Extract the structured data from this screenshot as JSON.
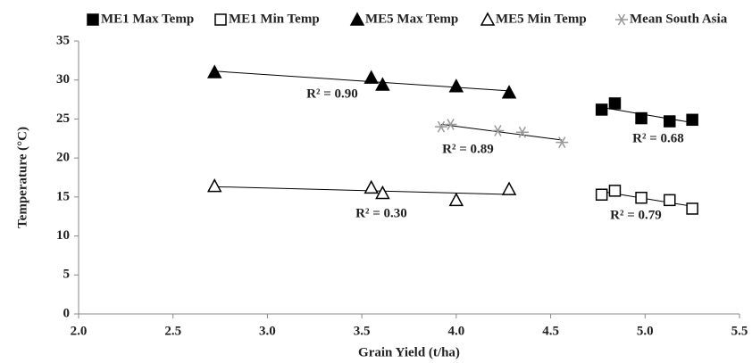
{
  "chart_data": {
    "type": "scatter",
    "x_label": "Grain Yield  (t/ha)",
    "y_label": "Temperature (°C)",
    "xlim": [
      2.0,
      5.5
    ],
    "xticks": [
      {
        "value": 2.0,
        "label": "2.0"
      },
      {
        "value": 2.5,
        "label": "2.5"
      },
      {
        "value": 3.0,
        "label": "3.0"
      },
      {
        "value": 3.5,
        "label": "3.5"
      },
      {
        "value": 4.0,
        "label": "4.0"
      },
      {
        "value": 4.5,
        "label": "4.5"
      },
      {
        "value": 5.0,
        "label": "5.0"
      },
      {
        "value": 5.5,
        "label": "5.5"
      }
    ],
    "ylim": [
      0,
      35
    ],
    "yticks": [
      0,
      5,
      10,
      15,
      20,
      25,
      30,
      35
    ],
    "trendline": "linear",
    "series": [
      {
        "name": "ME1 Max Temp",
        "marker": "square",
        "filled": true,
        "color": "#000000",
        "x": [
          4.77,
          4.84,
          4.98,
          5.13,
          5.25
        ],
        "values": [
          26.2,
          27.0,
          25.1,
          24.7,
          24.9
        ],
        "annotation": "R² = 0.68"
      },
      {
        "name": "ME1 Min Temp",
        "marker": "square",
        "filled": false,
        "color": "#000000",
        "x": [
          4.77,
          4.84,
          4.98,
          5.13,
          5.25
        ],
        "values": [
          15.3,
          15.8,
          14.9,
          14.6,
          13.5
        ],
        "annotation": "R² = 0.79"
      },
      {
        "name": "ME5 Max Temp",
        "marker": "triangle",
        "filled": true,
        "color": "#000000",
        "x": [
          2.72,
          3.55,
          3.61,
          4.0,
          4.28
        ],
        "values": [
          31.0,
          30.3,
          29.4,
          29.2,
          28.4
        ],
        "annotation": "R² = 0.90"
      },
      {
        "name": "ME5 Min Temp",
        "marker": "triangle",
        "filled": false,
        "color": "#000000",
        "x": [
          2.72,
          3.55,
          3.61,
          4.0,
          4.28
        ],
        "values": [
          16.4,
          16.2,
          15.5,
          14.6,
          16.0
        ],
        "annotation": "R² = 0.30"
      },
      {
        "name": "Mean South Asia",
        "marker": "asterisk",
        "filled": false,
        "color": "#999999",
        "x": [
          3.92,
          3.97,
          4.22,
          4.35,
          4.56
        ],
        "values": [
          24.0,
          24.3,
          23.5,
          23.3,
          22.0
        ],
        "annotation": "R² = 0.89"
      }
    ]
  }
}
